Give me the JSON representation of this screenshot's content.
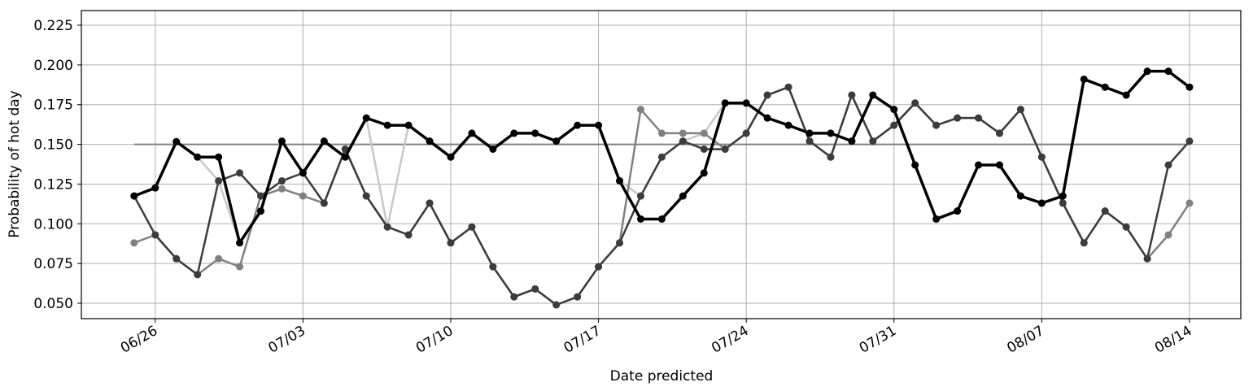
{
  "chart_data": {
    "type": "line",
    "xlabel": "Date predicted",
    "ylabel": "Probability of hot day",
    "categories": [
      null,
      "06/26",
      null,
      null,
      null,
      null,
      null,
      null,
      "07/03",
      null,
      null,
      null,
      null,
      null,
      null,
      "07/10",
      null,
      null,
      null,
      null,
      null,
      null,
      "07/17",
      null,
      null,
      null,
      null,
      null,
      null,
      "07/24",
      null,
      null,
      null,
      null,
      null,
      null,
      "07/31",
      null,
      null,
      null,
      null,
      null,
      null,
      "08/07",
      null,
      null,
      null,
      null,
      null,
      null,
      "08/14"
    ],
    "ylim": [
      0.0403,
      0.2342
    ],
    "yticks": [
      {
        "value": 0.05,
        "label": "0.050"
      },
      {
        "value": 0.075,
        "label": "0.075"
      },
      {
        "value": 0.1,
        "label": "0.100"
      },
      {
        "value": 0.125,
        "label": "0.125"
      },
      {
        "value": 0.15,
        "label": "0.150"
      },
      {
        "value": 0.175,
        "label": "0.175"
      },
      {
        "value": 0.2,
        "label": "0.200"
      },
      {
        "value": 0.225,
        "label": "0.225"
      }
    ],
    "grid": true,
    "reference_line": {
      "value": 0.15,
      "color": "#808080"
    },
    "series": [
      {
        "color": "#c8c8c8",
        "width": 2.5,
        "values": [
          0.1175,
          0.1226,
          0.1517,
          0.142,
          0.127,
          0.088,
          0.108,
          0.152,
          0.132,
          0.152,
          0.142,
          0.1666,
          0.098,
          0.162,
          0.152,
          0.142,
          0.157,
          0.147,
          0.157,
          0.157,
          0.152,
          0.162,
          0.162,
          0.127,
          0.1175,
          0.142,
          0.152,
          0.157,
          0.176,
          0.176,
          0.1666,
          0.162,
          0.157,
          0.157,
          0.152,
          0.181,
          0.172,
          0.137,
          0.103,
          0.108,
          0.137,
          0.137,
          0.1175,
          0.113,
          0.1175,
          0.191,
          0.186,
          0.181,
          0.196,
          0.196,
          0.186
        ]
      },
      {
        "color": "#808080",
        "width": 2.5,
        "values": [
          0.088,
          0.093,
          0.078,
          0.068,
          0.078,
          0.073,
          0.1175,
          0.122,
          0.1175,
          0.113,
          0.147,
          0.1175,
          0.098,
          0.093,
          0.113,
          0.088,
          0.098,
          0.073,
          0.054,
          0.059,
          0.049,
          0.054,
          0.073,
          0.088,
          0.172,
          0.157,
          0.157,
          0.157,
          0.147,
          0.157,
          0.181,
          0.186,
          0.152,
          0.142,
          0.181,
          0.152,
          0.162,
          0.176,
          0.162,
          0.1666,
          0.1666,
          0.157,
          0.172,
          0.142,
          0.113,
          0.088,
          0.108,
          0.098,
          0.078,
          0.093,
          0.113
        ]
      },
      {
        "color": "#3c3c3c",
        "width": 2.5,
        "values": [
          0.1175,
          0.093,
          0.078,
          0.068,
          0.127,
          0.132,
          0.1175,
          0.127,
          0.132,
          0.113,
          0.147,
          0.1175,
          0.098,
          0.093,
          0.113,
          0.088,
          0.098,
          0.073,
          0.054,
          0.059,
          0.049,
          0.054,
          0.073,
          0.088,
          0.1175,
          0.142,
          0.152,
          0.147,
          0.147,
          0.157,
          0.181,
          0.186,
          0.152,
          0.142,
          0.181,
          0.152,
          0.162,
          0.176,
          0.162,
          0.1666,
          0.1666,
          0.157,
          0.172,
          0.142,
          0.113,
          0.088,
          0.108,
          0.098,
          0.078,
          0.137,
          0.152
        ]
      },
      {
        "color": "#000000",
        "width": 3.5,
        "values": [
          0.1175,
          0.1226,
          0.1517,
          0.142,
          0.142,
          0.088,
          0.108,
          0.152,
          0.132,
          0.152,
          0.142,
          0.1666,
          0.162,
          0.162,
          0.152,
          0.142,
          0.157,
          0.147,
          0.157,
          0.157,
          0.152,
          0.162,
          0.162,
          0.127,
          0.103,
          0.103,
          0.1175,
          0.132,
          0.176,
          0.176,
          0.1666,
          0.162,
          0.157,
          0.157,
          0.152,
          0.181,
          0.172,
          0.137,
          0.103,
          0.108,
          0.137,
          0.137,
          0.1175,
          0.113,
          0.1175,
          0.191,
          0.186,
          0.181,
          0.196,
          0.196,
          0.186
        ]
      }
    ]
  }
}
